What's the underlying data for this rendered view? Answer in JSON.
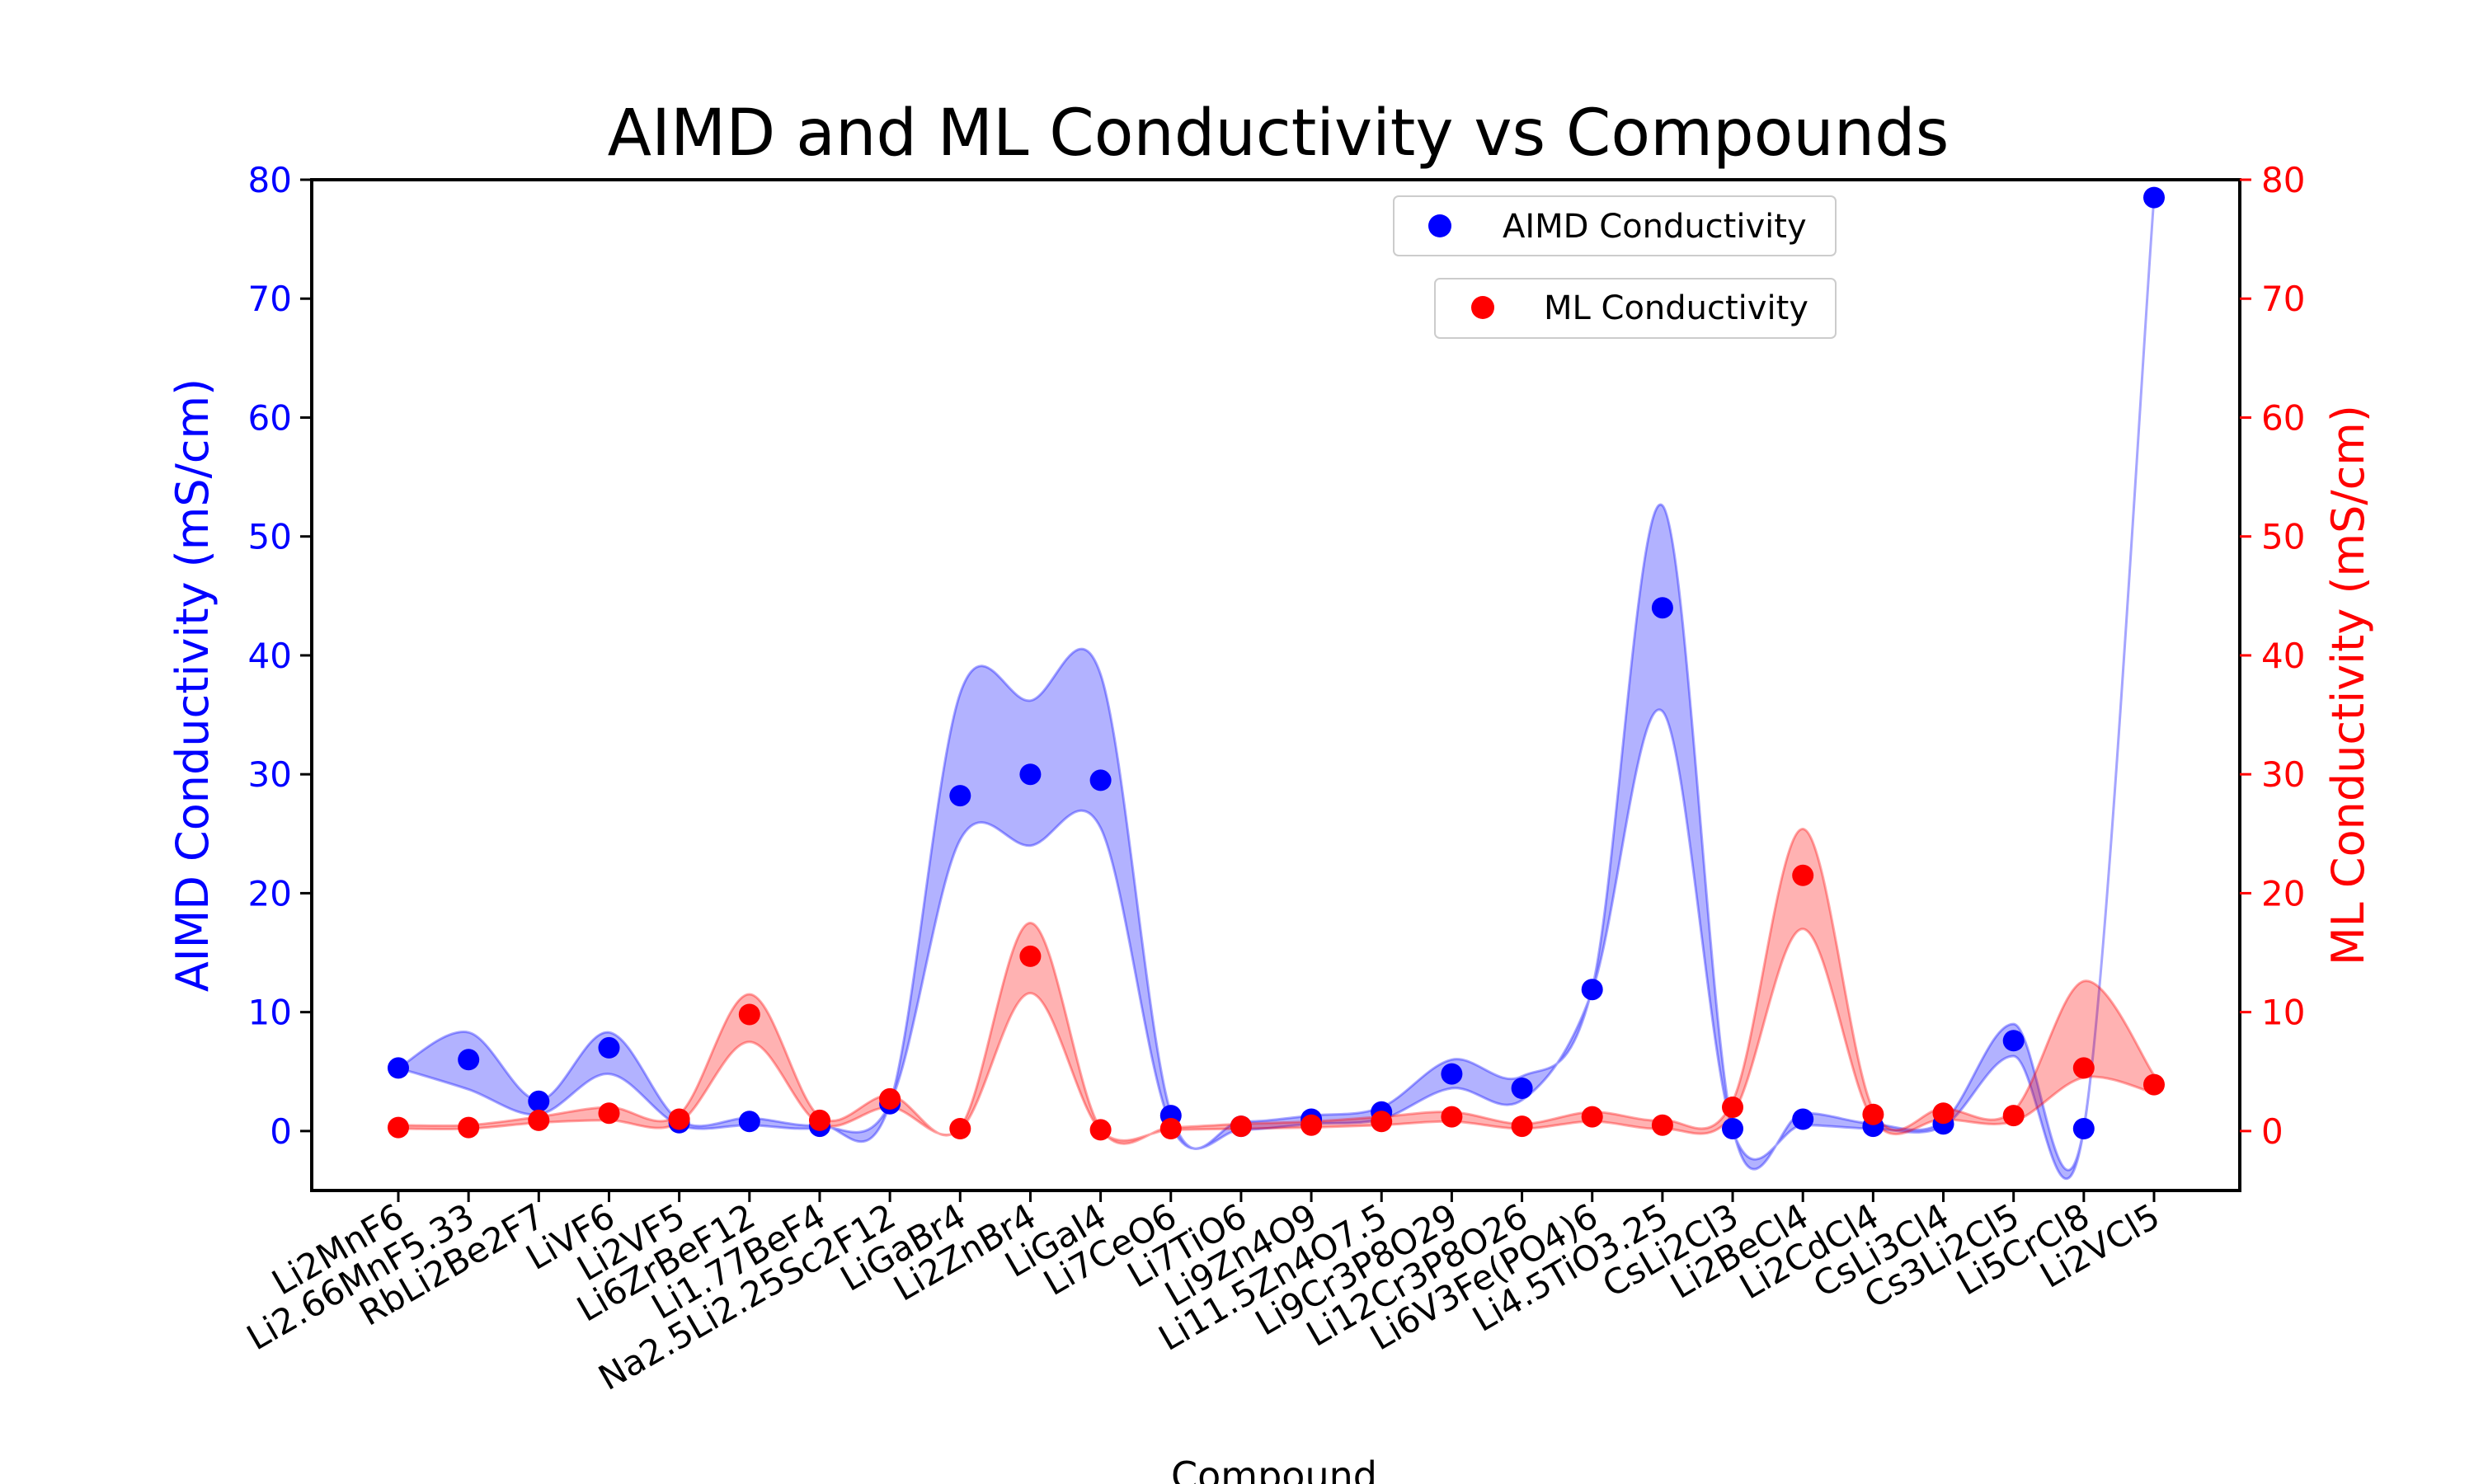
{
  "chart_data": {
    "type": "scatter",
    "title": "AIMD and ML Conductivity vs Compounds",
    "xlabel": "Compound",
    "ylabel_left": "AIMD Conductivity (mS/cm)",
    "ylabel_right": "ML Conductivity (mS/cm)",
    "ylim_left": [
      -5,
      80
    ],
    "ylim_right": [
      -5,
      80
    ],
    "yticks": [
      0,
      10,
      20,
      30,
      40,
      50,
      60,
      70,
      80
    ],
    "grid": false,
    "legend_placement": "top-center",
    "categories": [
      "Li2MnF6",
      "Li2.66MnF5.33",
      "RbLi2Be2F7",
      "LiVF6",
      "Li2VF5",
      "Li6ZrBeF12",
      "Li1.77BeF4",
      "Na2.5Li2.25Sc2F12",
      "LiGaBr4",
      "Li2ZnBr4",
      "LiGaI4",
      "Li7CeO6",
      "Li7TiO6",
      "Li9Zn4O9",
      "Li11.5Zn4O7.5",
      "Li9Cr3P8O29",
      "Li12Cr3P8O26",
      "Li6V3Fe(PO4)6",
      "Li4.5TiO3.25",
      "CsLi2Cl3",
      "Li2BeCl4",
      "Li2CdCl4",
      "CsLi3Cl4",
      "Cs3Li2Cl5",
      "Li5CrCl8",
      "Li2VCl5"
    ],
    "series": [
      {
        "name": "AIMD Conductivity",
        "axis": "left",
        "color": "#0000ff",
        "band_color": "#0000ff",
        "values": [
          5.3,
          6.0,
          2.5,
          7.0,
          0.7,
          0.8,
          0.4,
          2.3,
          28.2,
          30.0,
          29.5,
          1.3,
          0.4,
          1.0,
          1.6,
          4.8,
          3.6,
          11.9,
          44.0,
          0.2,
          1.0,
          0.4,
          0.6,
          7.6,
          0.2,
          78.5
        ],
        "band_lower": [
          5.3,
          3.5,
          1.4,
          4.8,
          0.5,
          0.5,
          0.3,
          2.3,
          24.5,
          24.0,
          25.5,
          0.5,
          0.1,
          0.6,
          1.0,
          3.6,
          2.6,
          11.8,
          35.3,
          0.1,
          0.5,
          0.2,
          0.4,
          6.3,
          0.1,
          78.5
        ],
        "band_upper": [
          5.3,
          8.3,
          2.6,
          8.3,
          0.9,
          1.1,
          0.5,
          2.3,
          36.8,
          36.2,
          38.4,
          1.5,
          0.8,
          1.3,
          2.0,
          6.0,
          4.6,
          12.0,
          52.6,
          0.3,
          1.5,
          0.6,
          0.8,
          9.0,
          0.3,
          78.5
        ]
      },
      {
        "name": "ML Conductivity",
        "axis": "right",
        "color": "#ff0000",
        "band_color": "#ff0000",
        "values": [
          0.3,
          0.3,
          0.9,
          1.5,
          1.0,
          9.8,
          0.9,
          2.7,
          0.2,
          14.7,
          0.1,
          0.2,
          0.4,
          0.5,
          0.8,
          1.2,
          0.4,
          1.2,
          0.5,
          2.0,
          21.5,
          1.4,
          1.5,
          1.3,
          5.3,
          3.9
        ],
        "band_lower": [
          0.2,
          0.2,
          0.7,
          0.9,
          0.7,
          7.5,
          0.6,
          2.0,
          0.1,
          11.6,
          0.05,
          0.1,
          0.2,
          0.3,
          0.5,
          0.8,
          0.2,
          0.8,
          0.2,
          1.4,
          17.0,
          0.9,
          1.0,
          0.8,
          4.5,
          3.2
        ],
        "band_upper": [
          0.5,
          0.5,
          1.2,
          2.0,
          1.4,
          11.5,
          1.2,
          3.0,
          0.3,
          17.5,
          0.2,
          0.3,
          0.6,
          0.8,
          1.2,
          1.6,
          0.6,
          1.6,
          0.9,
          2.5,
          25.4,
          1.8,
          1.9,
          1.7,
          12.6,
          4.7
        ]
      }
    ]
  }
}
